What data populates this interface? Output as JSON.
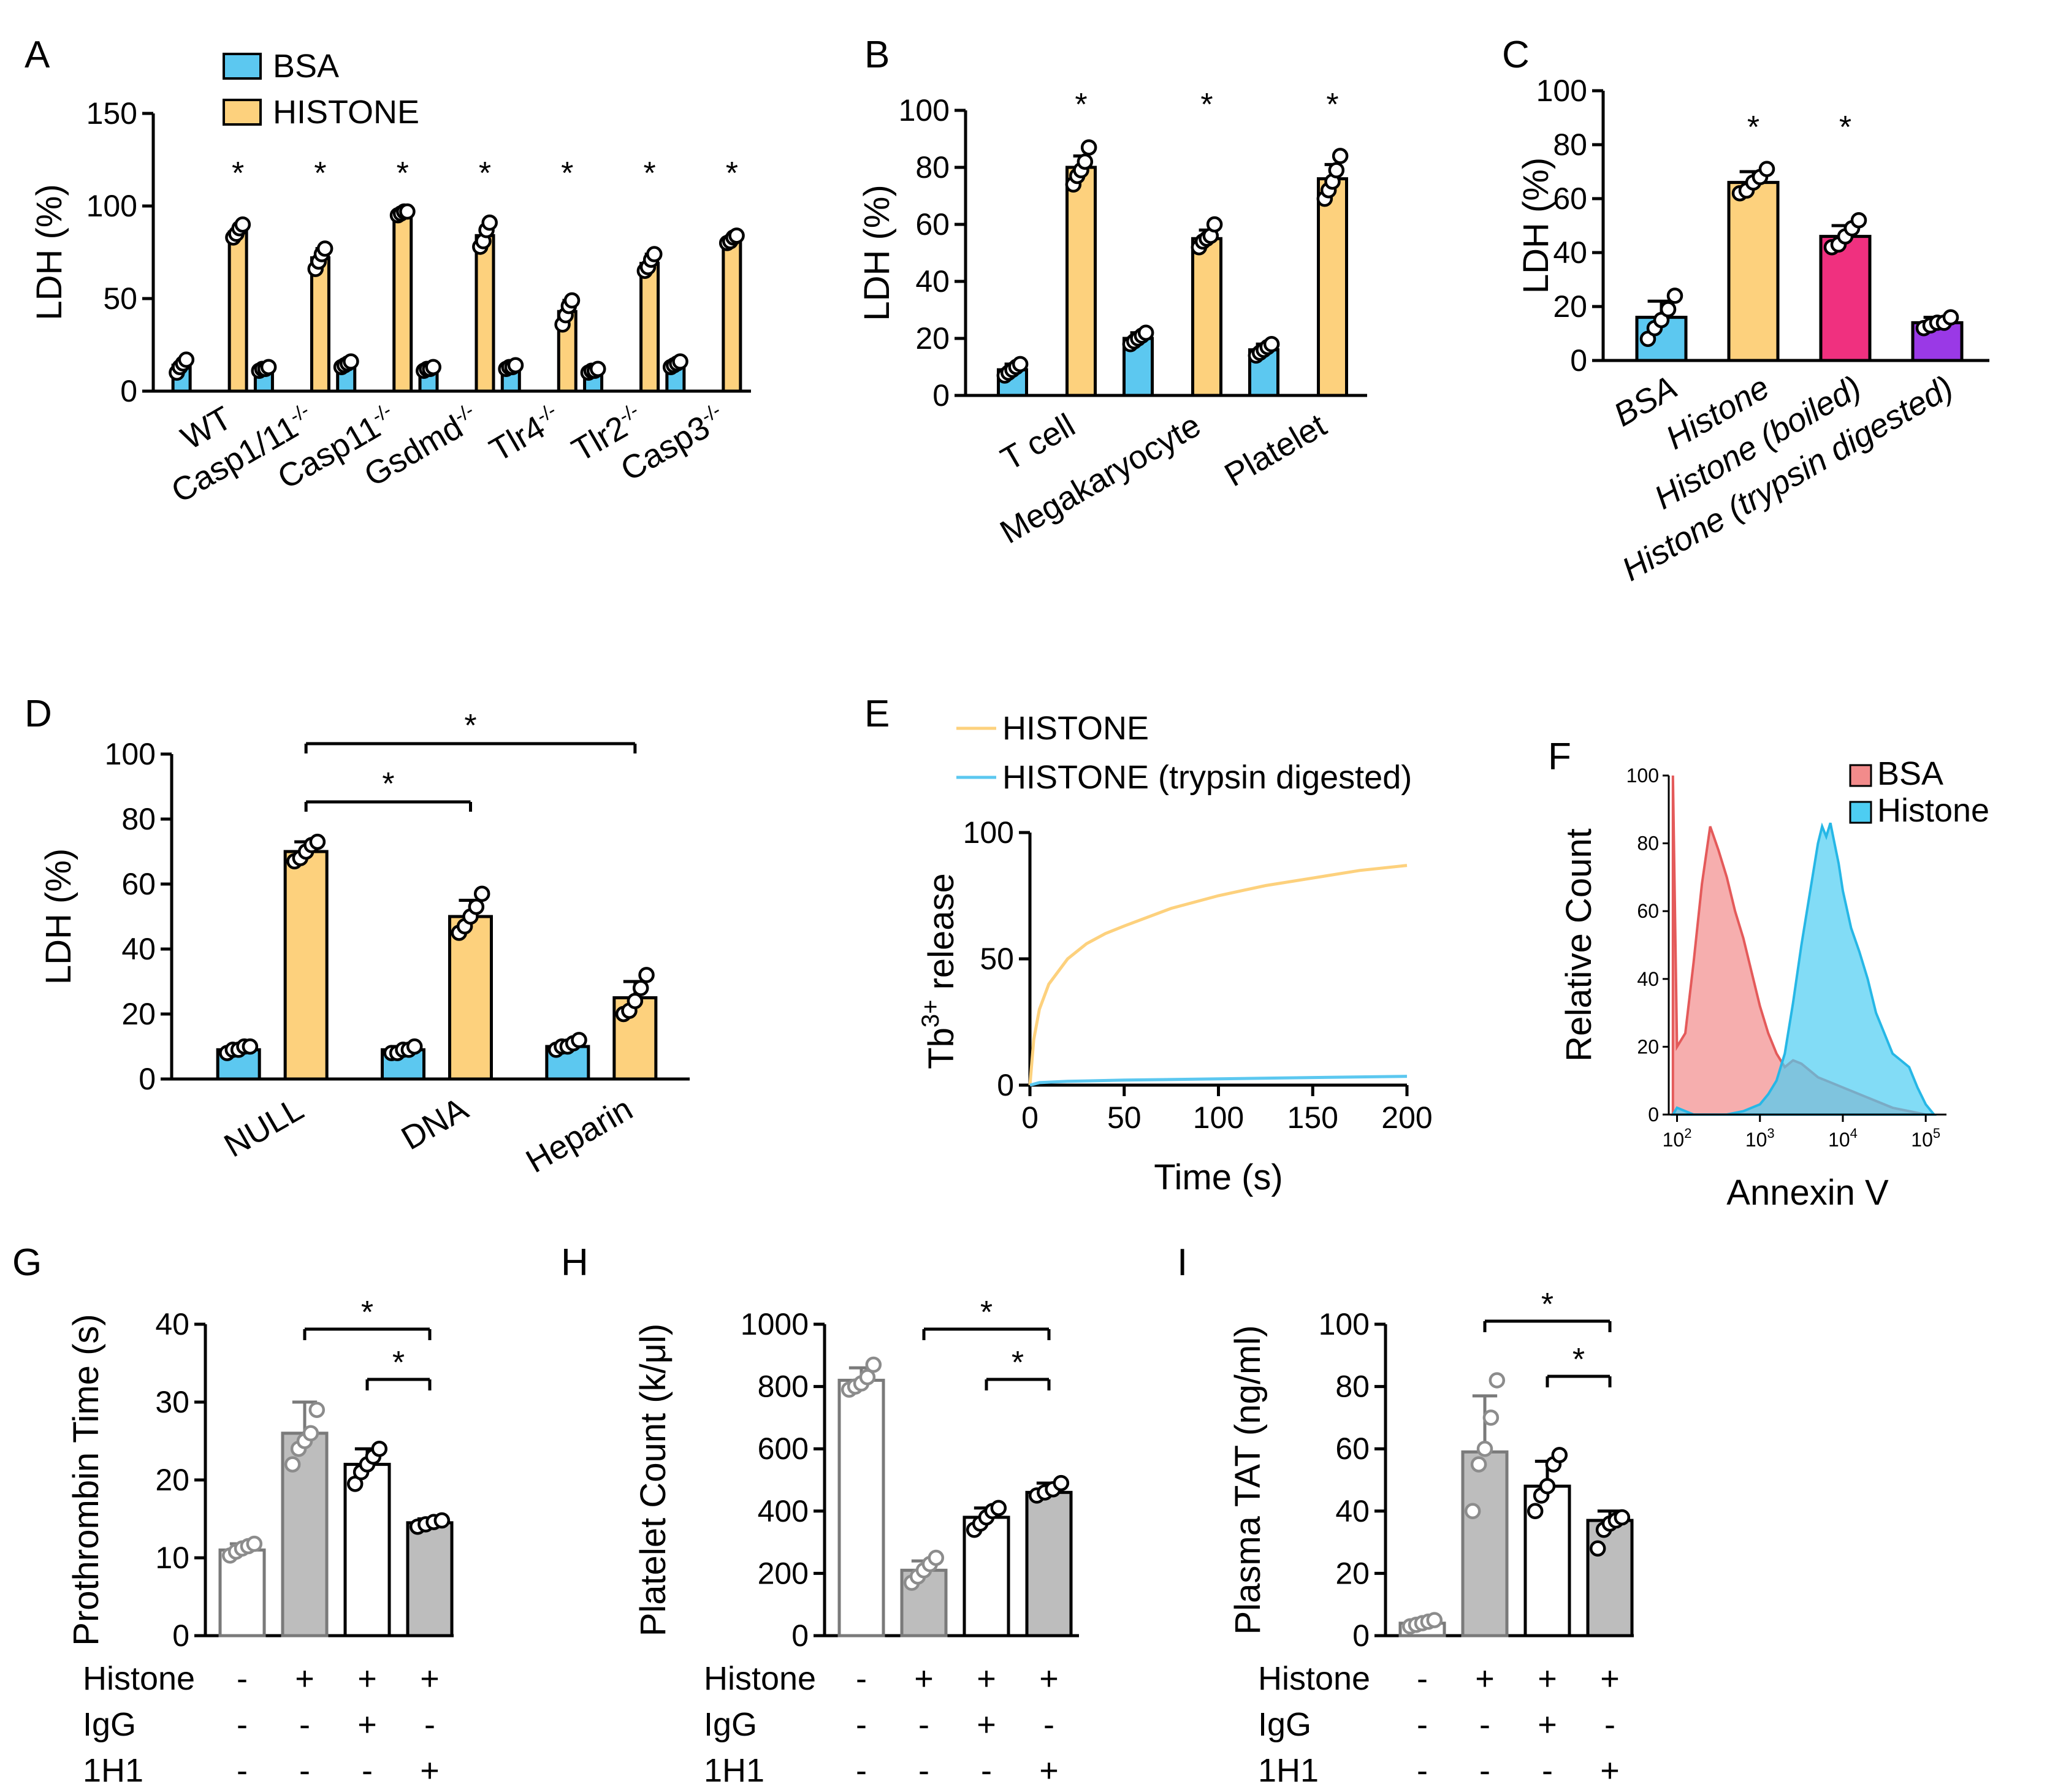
{
  "colors": {
    "bsa": "#5cc8f0",
    "histone": "#fdd17d",
    "boiled": "#f0307f",
    "trypsin": "#9a39e6",
    "grey": "#bdbdbd",
    "white": "#ffffff",
    "flow_bsa": "#f28b8b",
    "flow_histone": "#4dcdf2",
    "axis": "#000000",
    "marker_grey": "#8c8c8c"
  },
  "chart_data": [
    {
      "panel": "A",
      "type": "bar",
      "ylabel": "LDH (%)",
      "ylim": [
        0,
        150
      ],
      "yticks": [
        "0",
        "50",
        "100",
        "150"
      ],
      "legend": [
        "BSA",
        "HISTONE"
      ],
      "categories": [
        "WT",
        "Casp1/11",
        "Casp11",
        "Gsdmd",
        "Tlr4",
        "Tlr2",
        "Casp3"
      ],
      "category_suffix": "-/-",
      "series": [
        {
          "name": "BSA",
          "values": [
            14,
            12,
            14,
            12,
            13,
            11,
            14
          ],
          "sd": [
            3,
            1,
            2,
            1,
            1,
            1,
            2
          ]
        },
        {
          "name": "HISTONE",
          "values": [
            86,
            72,
            96,
            84,
            43,
            69,
            82
          ],
          "sd": [
            4,
            5,
            2,
            5,
            6,
            5,
            2
          ]
        }
      ],
      "points": [
        [
          [
            10,
            13,
            15,
            17
          ],
          [
            83,
            85,
            88,
            90
          ]
        ],
        [
          [
            11,
            12,
            12,
            13
          ],
          [
            66,
            70,
            74,
            77
          ]
        ],
        [
          [
            13,
            14,
            15,
            16
          ],
          [
            95,
            96,
            97,
            97
          ]
        ],
        [
          [
            11,
            12,
            12,
            13
          ],
          [
            78,
            81,
            87,
            91
          ]
        ],
        [
          [
            12,
            13,
            13,
            14
          ],
          [
            36,
            41,
            46,
            49
          ]
        ],
        [
          [
            10,
            11,
            11,
            12
          ],
          [
            65,
            67,
            71,
            74
          ]
        ],
        [
          [
            13,
            14,
            15,
            16
          ],
          [
            80,
            81,
            83,
            84
          ]
        ]
      ],
      "significance": [
        "*",
        "*",
        "*",
        "*",
        "*",
        "*",
        "*"
      ]
    },
    {
      "panel": "B",
      "type": "bar",
      "ylabel": "LDH (%)",
      "ylim": [
        0,
        100
      ],
      "yticks": [
        "0",
        "20",
        "40",
        "60",
        "80",
        "100"
      ],
      "categories": [
        "T cell",
        "Megakaryocyte",
        "Platelet"
      ],
      "series": [
        {
          "name": "BSA",
          "values": [
            9,
            20,
            16
          ],
          "sd": [
            2,
            2,
            2
          ]
        },
        {
          "name": "HISTONE",
          "values": [
            80,
            55,
            76
          ],
          "sd": [
            4,
            3,
            5
          ]
        }
      ],
      "points": [
        [
          [
            7,
            8,
            9,
            10,
            11
          ],
          [
            74,
            77,
            79,
            82,
            87
          ]
        ],
        [
          [
            18,
            19,
            20,
            21,
            22
          ],
          [
            52,
            54,
            55,
            56,
            60
          ]
        ],
        [
          [
            14,
            15,
            16,
            17,
            18
          ],
          [
            69,
            72,
            75,
            79,
            84
          ]
        ]
      ],
      "significance": [
        "*",
        "*",
        "*"
      ]
    },
    {
      "panel": "C",
      "type": "bar",
      "ylabel": "LDH (%)",
      "ylim": [
        0,
        100
      ],
      "yticks": [
        "0",
        "20",
        "40",
        "60",
        "80",
        "100"
      ],
      "categories": [
        "BSA",
        "Histone",
        "Histone (boiled)",
        "Histone (trypsin digested)"
      ],
      "values": [
        16,
        66,
        46,
        14
      ],
      "sd": [
        6,
        4,
        4,
        2
      ],
      "points": [
        [
          8,
          12,
          15,
          19,
          24
        ],
        [
          62,
          63,
          66,
          68,
          71
        ],
        [
          42,
          43,
          46,
          49,
          52
        ],
        [
          12,
          13,
          14,
          14,
          16
        ]
      ],
      "significance": [
        "",
        "*",
        "*",
        ""
      ]
    },
    {
      "panel": "D",
      "type": "bar",
      "ylabel": "LDH (%)",
      "ylim": [
        0,
        100
      ],
      "yticks": [
        "0",
        "20",
        "40",
        "60",
        "80",
        "100"
      ],
      "categories": [
        "NULL",
        "DNA",
        "Heparin"
      ],
      "series": [
        {
          "name": "BSA",
          "values": [
            9,
            9,
            10
          ],
          "sd": [
            1,
            1,
            1
          ]
        },
        {
          "name": "HISTONE",
          "values": [
            70,
            50,
            25
          ],
          "sd": [
            3,
            5,
            5
          ]
        }
      ],
      "points": [
        [
          [
            8,
            9,
            9,
            10,
            10
          ],
          [
            67,
            68,
            70,
            72,
            73
          ]
        ],
        [
          [
            8,
            8,
            9,
            9,
            10
          ],
          [
            45,
            47,
            50,
            53,
            57
          ]
        ],
        [
          [
            9,
            10,
            10,
            11,
            12
          ],
          [
            20,
            21,
            24,
            28,
            32
          ]
        ]
      ],
      "brackets": [
        {
          "from": "NULL",
          "to": "DNA",
          "label": "*"
        },
        {
          "from": "NULL",
          "to": "Heparin",
          "label": "*"
        }
      ]
    },
    {
      "panel": "E",
      "type": "line",
      "xlabel": "Time (s)",
      "ylabel": "Tb3+ release",
      "ylabel_base": "Tb",
      "ylabel_sup": "3+",
      "ylabel_rest": " release",
      "xlim": [
        0,
        200
      ],
      "ylim": [
        0,
        100
      ],
      "xticks": [
        "0",
        "50",
        "100",
        "150",
        "200"
      ],
      "yticks": [
        "0",
        "50",
        "100"
      ],
      "series": [
        {
          "name": "HISTONE",
          "x": [
            0,
            2,
            5,
            10,
            20,
            30,
            40,
            50,
            75,
            100,
            125,
            150,
            175,
            200
          ],
          "y": [
            0,
            18,
            30,
            40,
            50,
            56,
            60,
            63,
            70,
            75,
            79,
            82,
            85,
            87
          ]
        },
        {
          "name": "HISTONE (trypsin digested)",
          "x": [
            0,
            5,
            20,
            50,
            100,
            150,
            200
          ],
          "y": [
            0,
            1,
            1.5,
            2,
            2.5,
            3,
            3.5
          ]
        }
      ]
    },
    {
      "panel": "F",
      "type": "area",
      "xlabel": "Annexin V",
      "ylabel": "Relative Count",
      "ylim": [
        0,
        100
      ],
      "yticks": [
        "0",
        "20",
        "40",
        "60",
        "80",
        "100"
      ],
      "xticks": [
        "10",
        "10",
        "10",
        "10"
      ],
      "xtick_exponents": [
        "2",
        "3",
        "4",
        "5"
      ],
      "xlim_log10": [
        1.9,
        5.25
      ],
      "series": [
        {
          "name": "BSA",
          "x_log10": [
            1.95,
            2.0,
            2.1,
            2.2,
            2.3,
            2.4,
            2.5,
            2.6,
            2.7,
            2.8,
            2.9,
            3.0,
            3.1,
            3.2,
            3.3,
            3.4,
            3.5,
            3.6,
            3.7,
            3.8,
            3.9,
            4.0,
            4.2,
            4.4,
            4.6,
            4.8,
            5.0
          ],
          "y": [
            100,
            20,
            24,
            45,
            68,
            85,
            78,
            70,
            60,
            52,
            42,
            32,
            24,
            18,
            14,
            16,
            15,
            13,
            11,
            10,
            9,
            8,
            6,
            4,
            2,
            1,
            0
          ]
        },
        {
          "name": "Histone",
          "x_log10": [
            1.95,
            2.0,
            2.2,
            2.4,
            2.6,
            2.8,
            3.0,
            3.1,
            3.2,
            3.3,
            3.4,
            3.5,
            3.6,
            3.7,
            3.75,
            3.8,
            3.85,
            3.9,
            3.95,
            4.0,
            4.1,
            4.2,
            4.3,
            4.4,
            4.5,
            4.6,
            4.7,
            4.8,
            4.9,
            5.0,
            5.1
          ],
          "y": [
            0,
            2,
            0,
            0,
            0,
            1,
            3,
            6,
            10,
            18,
            33,
            50,
            65,
            80,
            85,
            82,
            86,
            80,
            74,
            66,
            55,
            48,
            40,
            30,
            24,
            18,
            16,
            14,
            8,
            3,
            0
          ]
        }
      ]
    },
    {
      "panel": "G",
      "type": "bar",
      "ylabel": "Prothrombin Time (s)",
      "ylim": [
        0,
        40
      ],
      "yticks": [
        "0",
        "10",
        "20",
        "30",
        "40"
      ],
      "values": [
        11,
        26,
        22,
        14.5
      ],
      "sd": [
        0.8,
        4,
        2,
        0.5
      ],
      "fills": [
        "white",
        "grey",
        "white",
        "grey"
      ],
      "points": [
        [
          10.3,
          10.8,
          11.2,
          11.5,
          11.8
        ],
        [
          22,
          24,
          25,
          26,
          29
        ],
        [
          19.5,
          21,
          22,
          23,
          24
        ],
        [
          14,
          14.3,
          14.6,
          14.8
        ]
      ],
      "brackets": [
        {
          "from": 1,
          "to": 3,
          "label": "*"
        },
        {
          "from": 2,
          "to": 3,
          "label": "*"
        }
      ]
    },
    {
      "panel": "H",
      "type": "bar",
      "ylabel": "Platelet Count (k/μl)",
      "ylim": [
        0,
        1000
      ],
      "yticks": [
        "0",
        "200",
        "400",
        "600",
        "800",
        "1000"
      ],
      "values": [
        820,
        210,
        380,
        460
      ],
      "sd": [
        40,
        30,
        30,
        30
      ],
      "fills": [
        "white",
        "grey",
        "white",
        "grey"
      ],
      "points": [
        [
          790,
          800,
          810,
          830,
          870
        ],
        [
          170,
          190,
          210,
          230,
          250
        ],
        [
          340,
          360,
          380,
          400,
          410
        ],
        [
          450,
          460,
          470,
          490
        ]
      ],
      "brackets": [
        {
          "from": 1,
          "to": 3,
          "label": "*"
        },
        {
          "from": 2,
          "to": 3,
          "label": "*"
        }
      ]
    },
    {
      "panel": "I",
      "type": "bar",
      "ylabel": "Plasma TAT (ng/ml)",
      "ylim": [
        0,
        100
      ],
      "yticks": [
        "0",
        "20",
        "40",
        "60",
        "80",
        "100"
      ],
      "values": [
        4,
        59,
        48,
        37
      ],
      "sd": [
        1,
        18,
        8,
        3
      ],
      "fills": [
        "white",
        "grey",
        "white",
        "grey"
      ],
      "points": [
        [
          3,
          3.5,
          4,
          4.5,
          5
        ],
        [
          40,
          55,
          60,
          70,
          82
        ],
        [
          40,
          45,
          48,
          55,
          58
        ],
        [
          28,
          34,
          36,
          37,
          38
        ]
      ],
      "brackets": [
        {
          "from": 1,
          "to": 3,
          "label": "*"
        },
        {
          "from": 2,
          "to": 3,
          "label": "*"
        }
      ]
    }
  ],
  "treatment_table": {
    "rows": [
      {
        "label": "Histone",
        "values": [
          "-",
          "+",
          "+",
          "+"
        ]
      },
      {
        "label": "IgG",
        "values": [
          "-",
          "-",
          "+",
          "-"
        ]
      },
      {
        "label": "1H1",
        "values": [
          "-",
          "-",
          "-",
          "+"
        ]
      }
    ]
  }
}
